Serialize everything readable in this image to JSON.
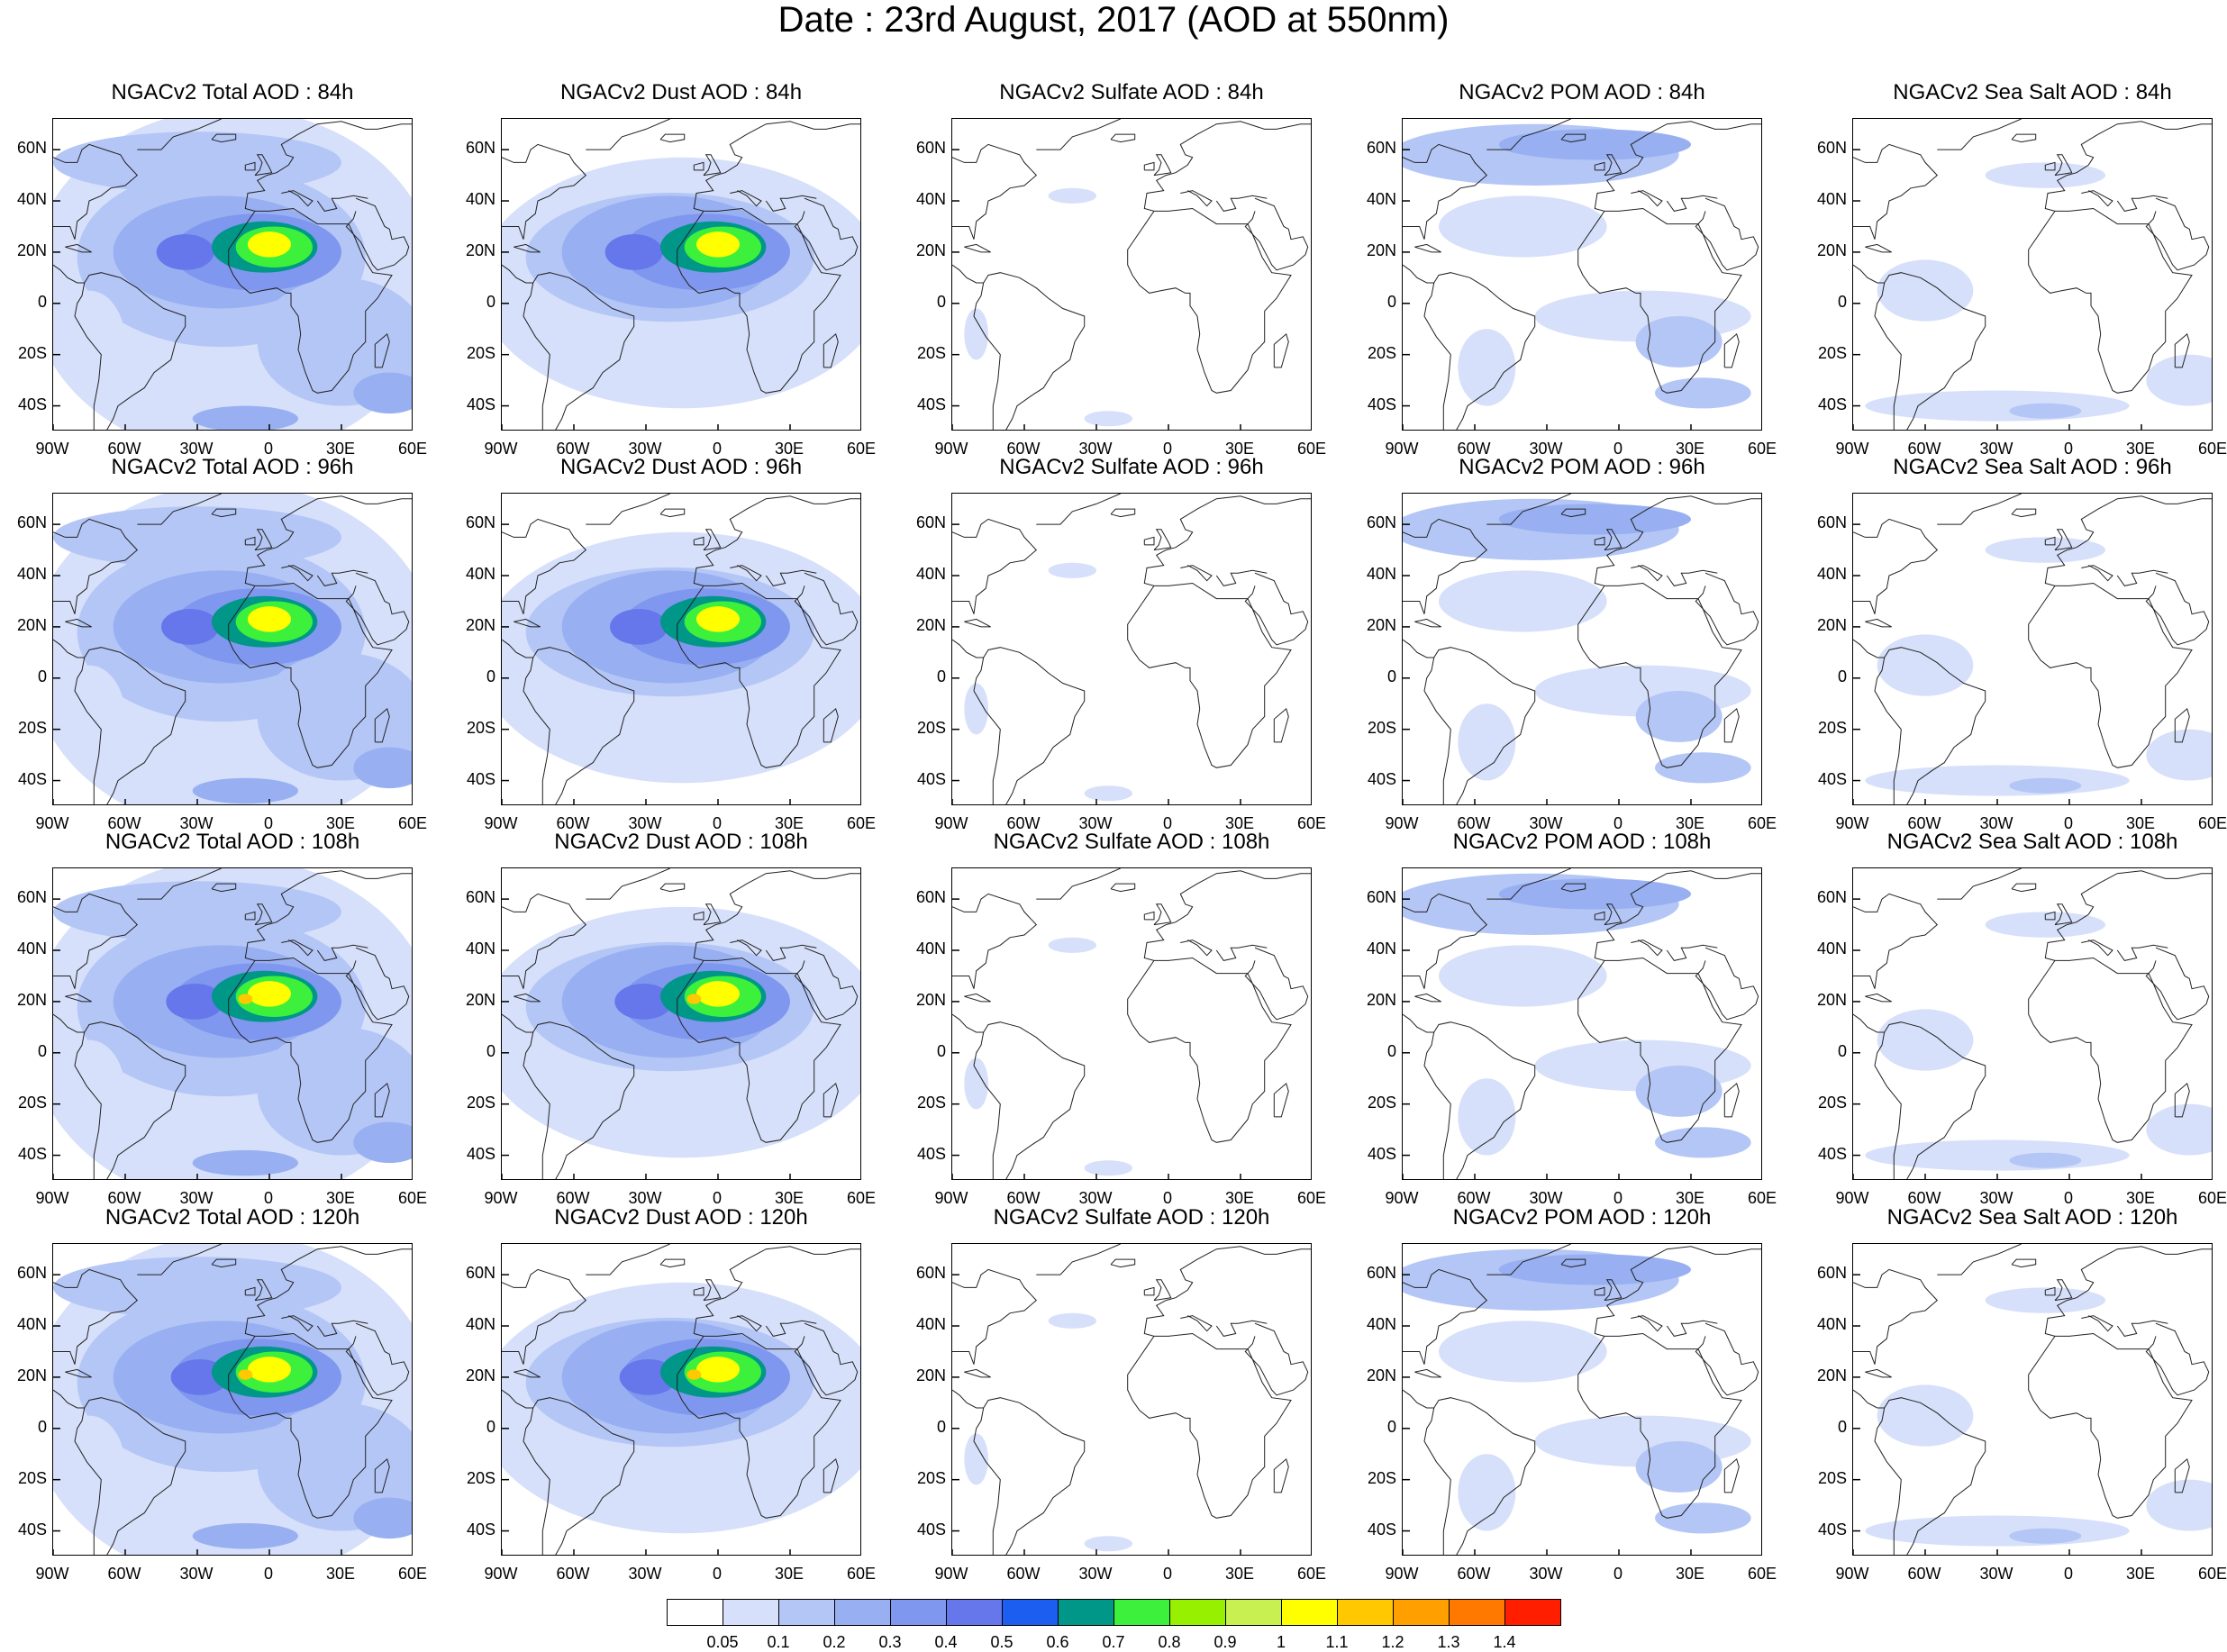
{
  "title": "Date : 23rd August, 2017 (AOD at 550nm)",
  "lat_labels": [
    "60N",
    "40N",
    "20N",
    "0",
    "20S",
    "40S"
  ],
  "lon_labels": [
    "90W",
    "60W",
    "30W",
    "0",
    "30E",
    "60E"
  ],
  "panels": [
    {
      "title": "NGACv2 Total AOD : 84h",
      "species": "total",
      "hour": 84
    },
    {
      "title": "NGACv2 Dust AOD : 84h",
      "species": "dust",
      "hour": 84
    },
    {
      "title": "NGACv2 Sulfate AOD : 84h",
      "species": "sulfate",
      "hour": 84
    },
    {
      "title": "NGACv2 POM AOD : 84h",
      "species": "pom",
      "hour": 84
    },
    {
      "title": "NGACv2 Sea Salt AOD : 84h",
      "species": "seasalt",
      "hour": 84
    },
    {
      "title": "NGACv2 Total AOD : 96h",
      "species": "total",
      "hour": 96
    },
    {
      "title": "NGACv2 Dust AOD : 96h",
      "species": "dust",
      "hour": 96
    },
    {
      "title": "NGACv2 Sulfate AOD : 96h",
      "species": "sulfate",
      "hour": 96
    },
    {
      "title": "NGACv2 POM AOD : 96h",
      "species": "pom",
      "hour": 96
    },
    {
      "title": "NGACv2 Sea Salt AOD : 96h",
      "species": "seasalt",
      "hour": 96
    },
    {
      "title": "NGACv2 Total AOD : 108h",
      "species": "total",
      "hour": 108
    },
    {
      "title": "NGACv2 Dust AOD : 108h",
      "species": "dust",
      "hour": 108
    },
    {
      "title": "NGACv2 Sulfate AOD : 108h",
      "species": "sulfate",
      "hour": 108
    },
    {
      "title": "NGACv2 POM AOD : 108h",
      "species": "pom",
      "hour": 108
    },
    {
      "title": "NGACv2 Sea Salt AOD : 108h",
      "species": "seasalt",
      "hour": 108
    },
    {
      "title": "NGACv2 Total AOD : 120h",
      "species": "total",
      "hour": 120
    },
    {
      "title": "NGACv2 Dust AOD : 120h",
      "species": "dust",
      "hour": 120
    },
    {
      "title": "NGACv2 Sulfate AOD : 120h",
      "species": "sulfate",
      "hour": 120
    },
    {
      "title": "NGACv2 POM AOD : 120h",
      "species": "pom",
      "hour": 120
    },
    {
      "title": "NGACv2 Sea Salt  AOD : 120h",
      "species": "seasalt",
      "hour": 120
    }
  ],
  "colorbar": {
    "colors": [
      "#ffffff",
      "#d6e0fa",
      "#b4c6f6",
      "#98b0f2",
      "#7f97ee",
      "#6577ea",
      "#1c5ff0",
      "#009688",
      "#3cf03c",
      "#96f000",
      "#c8f050",
      "#ffff00",
      "#ffc800",
      "#ffa000",
      "#ff7800",
      "#ff1e00"
    ],
    "labels": [
      "0.05",
      "0.1",
      "0.2",
      "0.3",
      "0.4",
      "0.5",
      "0.6",
      "0.7",
      "0.8",
      "0.9",
      "1",
      "1.1",
      "1.2",
      "1.3",
      "1.4"
    ]
  }
}
